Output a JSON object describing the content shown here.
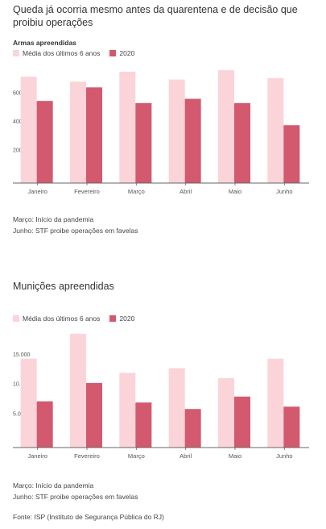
{
  "header": {
    "headline": "Queda já ocorria mesmo antes da quarentena e de decisão que proibiu operações"
  },
  "colors": {
    "avg": "#fbd4d9",
    "y2020": "#d3596e",
    "axis": "#666666",
    "tick": "#555555"
  },
  "chart1": {
    "notes": [
      "Março: Início da pandemia",
      "Junho: STF proibe operações em favelas"
    ]
  },
  "chart2": {
    "notes": [
      "Março: Início da pandemia",
      "Junho: STF proibe operações em favelas"
    ]
  },
  "footer": {
    "source": "Fonte: ISP (Instituto de Segurança Pública do RJ)"
  },
  "chart_data": [
    {
      "type": "bar",
      "title": "Armas apreendidas",
      "categories": [
        "Janeiro",
        "Fevereiro",
        "Março",
        "Abril",
        "Maio",
        "Junho"
      ],
      "series": [
        {
          "name": "Média dos últimos 6 anos",
          "values": [
            745,
            710,
            780,
            725,
            790,
            735
          ]
        },
        {
          "name": "2020",
          "values": [
            575,
            670,
            560,
            590,
            560,
            405
          ]
        }
      ],
      "yticks": [
        200,
        400,
        600
      ],
      "ylim": [
        0,
        830
      ],
      "legend": "top-left",
      "grid": false
    },
    {
      "type": "bar",
      "title": "Munições apreendidas",
      "categories": [
        "Janeiro",
        "Fevereiro",
        "Março",
        "Abril",
        "Maio",
        "Junho"
      ],
      "series": [
        {
          "name": "Média dos últimos 6 anos",
          "values": [
            15000,
            19200,
            12600,
            13400,
            11700,
            15000
          ]
        },
        {
          "name": "2020",
          "values": [
            7800,
            10900,
            7600,
            6500,
            8600,
            6900
          ]
        }
      ],
      "yticks": [
        5000,
        10000,
        15000
      ],
      "ytick_labels": [
        "5.000",
        "10.000",
        "15.000"
      ],
      "ylim": [
        0,
        20000
      ],
      "legend": "top-left",
      "grid": false
    }
  ]
}
